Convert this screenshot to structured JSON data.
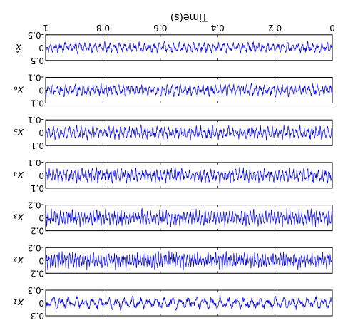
{
  "chart_data": {
    "type": "line",
    "title": "",
    "xlabel": "Time(s)",
    "xlim": [
      0,
      1
    ],
    "xticks": [
      "0",
      "0.2",
      "0.4",
      "0.6",
      "0.8",
      "1"
    ],
    "orientation": "rotated 180 degrees",
    "line_color": "#0000ee",
    "series": [
      {
        "label": "x₁",
        "ylim": [
          -0.3,
          0.3
        ],
        "yticks": [
          "-0.3",
          "0",
          "0.3"
        ],
        "amplitude": 0.14,
        "cycles": 36
      },
      {
        "label": "x₂",
        "ylim": [
          -0.2,
          0.2
        ],
        "yticks": [
          "-0.2",
          "0",
          "0.2"
        ],
        "amplitude": 0.12,
        "cycles": 110
      },
      {
        "label": "x₃",
        "ylim": [
          -0.2,
          0.2
        ],
        "yticks": [
          "-0.2",
          "0",
          "0.2"
        ],
        "amplitude": 0.12,
        "cycles": 95
      },
      {
        "label": "x₄",
        "ylim": [
          -0.1,
          0.1
        ],
        "yticks": [
          "-0.1",
          "0",
          "0.1"
        ],
        "amplitude": 0.055,
        "cycles": 80
      },
      {
        "label": "x₅",
        "ylim": [
          -0.1,
          0.1
        ],
        "yticks": [
          "-0.1",
          "0",
          "0.1"
        ],
        "amplitude": 0.05,
        "cycles": 72
      },
      {
        "label": "x₆",
        "ylim": [
          -0.1,
          0.1
        ],
        "yticks": [
          "-0.1",
          "0",
          "0.1"
        ],
        "amplitude": 0.045,
        "cycles": 65
      },
      {
        "label": "x̂",
        "ylim": [
          -0.5,
          0.5
        ],
        "yticks": [
          "-0.5",
          "0",
          "0.5"
        ],
        "amplitude": 0.2,
        "cycles": 58
      }
    ]
  }
}
